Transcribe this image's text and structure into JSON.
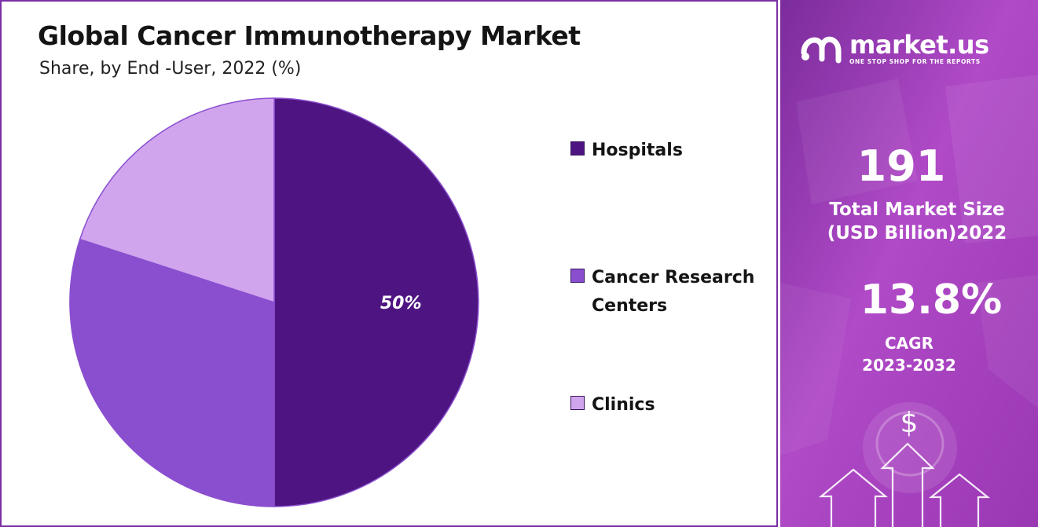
{
  "chart_data": {
    "type": "pie",
    "title": "Global Cancer Immunotherapy Market",
    "subtitle": "Share, by End -User, 2022 (%)",
    "categories": [
      "Hospitals",
      "Cancer Research Centers",
      "Clinics"
    ],
    "values": [
      50,
      30,
      20
    ],
    "data_labels": [
      "50%",
      "",
      ""
    ],
    "colors": [
      "#4e1582",
      "#8a4fcf",
      "#d1a5ee"
    ],
    "legend_position": "right",
    "start_angle_deg": 0,
    "direction": "clockwise"
  },
  "legend": {
    "items": [
      {
        "label": "Hospitals",
        "color": "#4e1582"
      },
      {
        "label": "Cancer Research Centers",
        "color": "#8a4fcf"
      },
      {
        "label": "Clinics",
        "color": "#d1a5ee"
      }
    ]
  },
  "side_panel": {
    "brand_name": "market.us",
    "brand_tagline": "ONE STOP SHOP FOR THE REPORTS",
    "brand_icon": "market-us-logo-icon",
    "market_size_value": "191",
    "market_size_label_line1": "Total Market Size",
    "market_size_label_line2": "(USD Billion)2022",
    "cagr_value": "13.8%",
    "cagr_label_line1": "CAGR",
    "cagr_label_line2": "2023-2032",
    "dollar_symbol": "$",
    "background_color": "#a43fc0"
  }
}
